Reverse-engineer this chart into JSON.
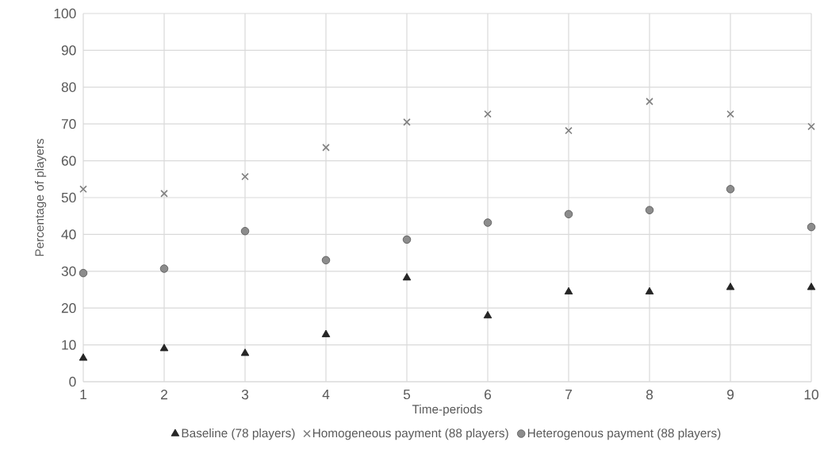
{
  "chart_data": {
    "type": "scatter",
    "xlabel": "Time-periods",
    "ylabel": "Percentage of players",
    "x": [
      1,
      2,
      3,
      4,
      5,
      6,
      7,
      8,
      9,
      10
    ],
    "series": [
      {
        "name": "Baseline (78 players)",
        "color": "#262626",
        "marker": "triangle",
        "values": [
          6.4,
          9.0,
          7.7,
          12.8,
          28.2,
          17.9,
          24.4,
          24.4,
          25.6,
          25.6
        ]
      },
      {
        "name": "Homogeneous payment (88 players)",
        "color": "#7f7f7f",
        "marker": "cross",
        "values": [
          52.3,
          51.1,
          55.7,
          63.6,
          70.5,
          72.7,
          68.2,
          76.1,
          72.7,
          69.3
        ]
      },
      {
        "name": "Heterogenous payment (88 players)",
        "color": "#8c8c8c",
        "marker": "circle",
        "values": [
          29.5,
          30.7,
          40.9,
          33.0,
          38.6,
          43.2,
          45.5,
          46.6,
          52.3,
          42.0
        ]
      }
    ],
    "xlim": [
      1,
      10
    ],
    "xticks": [
      1,
      2,
      3,
      4,
      5,
      6,
      7,
      8,
      9,
      10
    ],
    "ylim": [
      0,
      100
    ],
    "yticks": [
      0,
      10,
      20,
      30,
      40,
      50,
      60,
      70,
      80,
      90,
      100
    ],
    "grid": true,
    "legend": "bottom"
  }
}
